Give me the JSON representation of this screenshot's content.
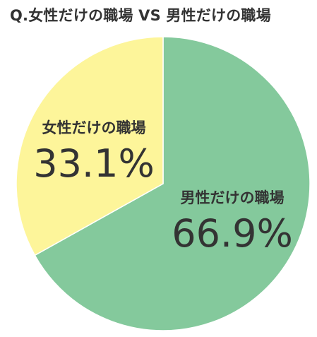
{
  "chart_data": {
    "type": "pie",
    "title": "Q.女性だけの職場 VS 男性だけの職場",
    "slices": [
      {
        "label": "男性だけの職場",
        "value": 66.9,
        "value_label": "66.9%",
        "color": "#84c99c"
      },
      {
        "label": "女性だけの職場",
        "value": 33.1,
        "value_label": "33.1%",
        "color": "#fdf59a"
      }
    ],
    "start_angle_deg": 0,
    "direction": "clockwise",
    "legend": "none"
  }
}
